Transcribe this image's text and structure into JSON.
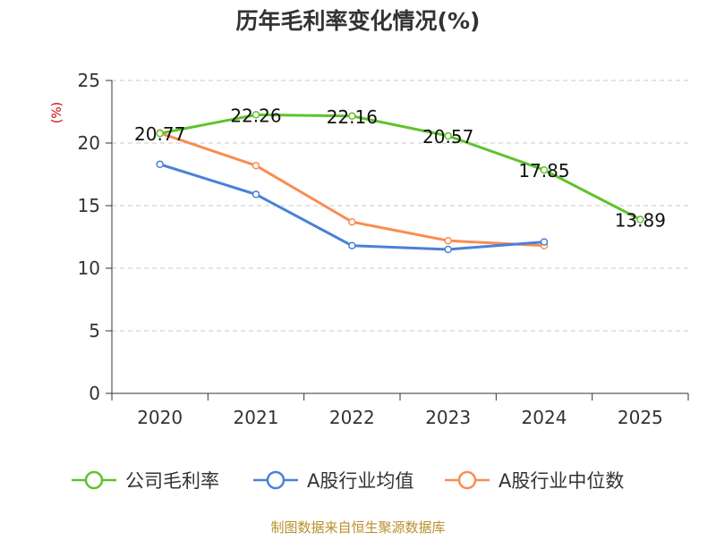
{
  "chart_data": {
    "type": "line",
    "title": "历年毛利率变化情况(%)",
    "ylabel": "(%)",
    "xlabel": "",
    "categories": [
      "2020",
      "2021",
      "2022",
      "2023",
      "2024",
      "2025"
    ],
    "ylim": [
      0,
      25
    ],
    "yticks": [
      0,
      5,
      10,
      15,
      20,
      25
    ],
    "ytick_labels": [
      "0",
      "5",
      "10",
      "15",
      "20",
      "25"
    ],
    "grid": true,
    "legend_position": "bottom",
    "series": [
      {
        "name": "公司毛利率",
        "color": "#5fc22b",
        "values": [
          20.77,
          22.26,
          22.16,
          20.57,
          17.85,
          13.89
        ],
        "labels": [
          "20.77",
          "22.26",
          "22.16",
          "20.57",
          "17.85",
          "13.89"
        ]
      },
      {
        "name": "A股行业均值",
        "color": "#4a80d9",
        "values": [
          18.3,
          15.9,
          11.8,
          11.5,
          12.1,
          null
        ],
        "labels": []
      },
      {
        "name": "A股行业中位数",
        "color": "#fa8c50",
        "values": [
          20.8,
          18.2,
          13.7,
          12.2,
          11.8,
          null
        ],
        "labels": []
      }
    ],
    "unit_color": "#cc0000",
    "source": "制图数据来自恒生聚源数据库",
    "source_color": "#b8902a"
  }
}
